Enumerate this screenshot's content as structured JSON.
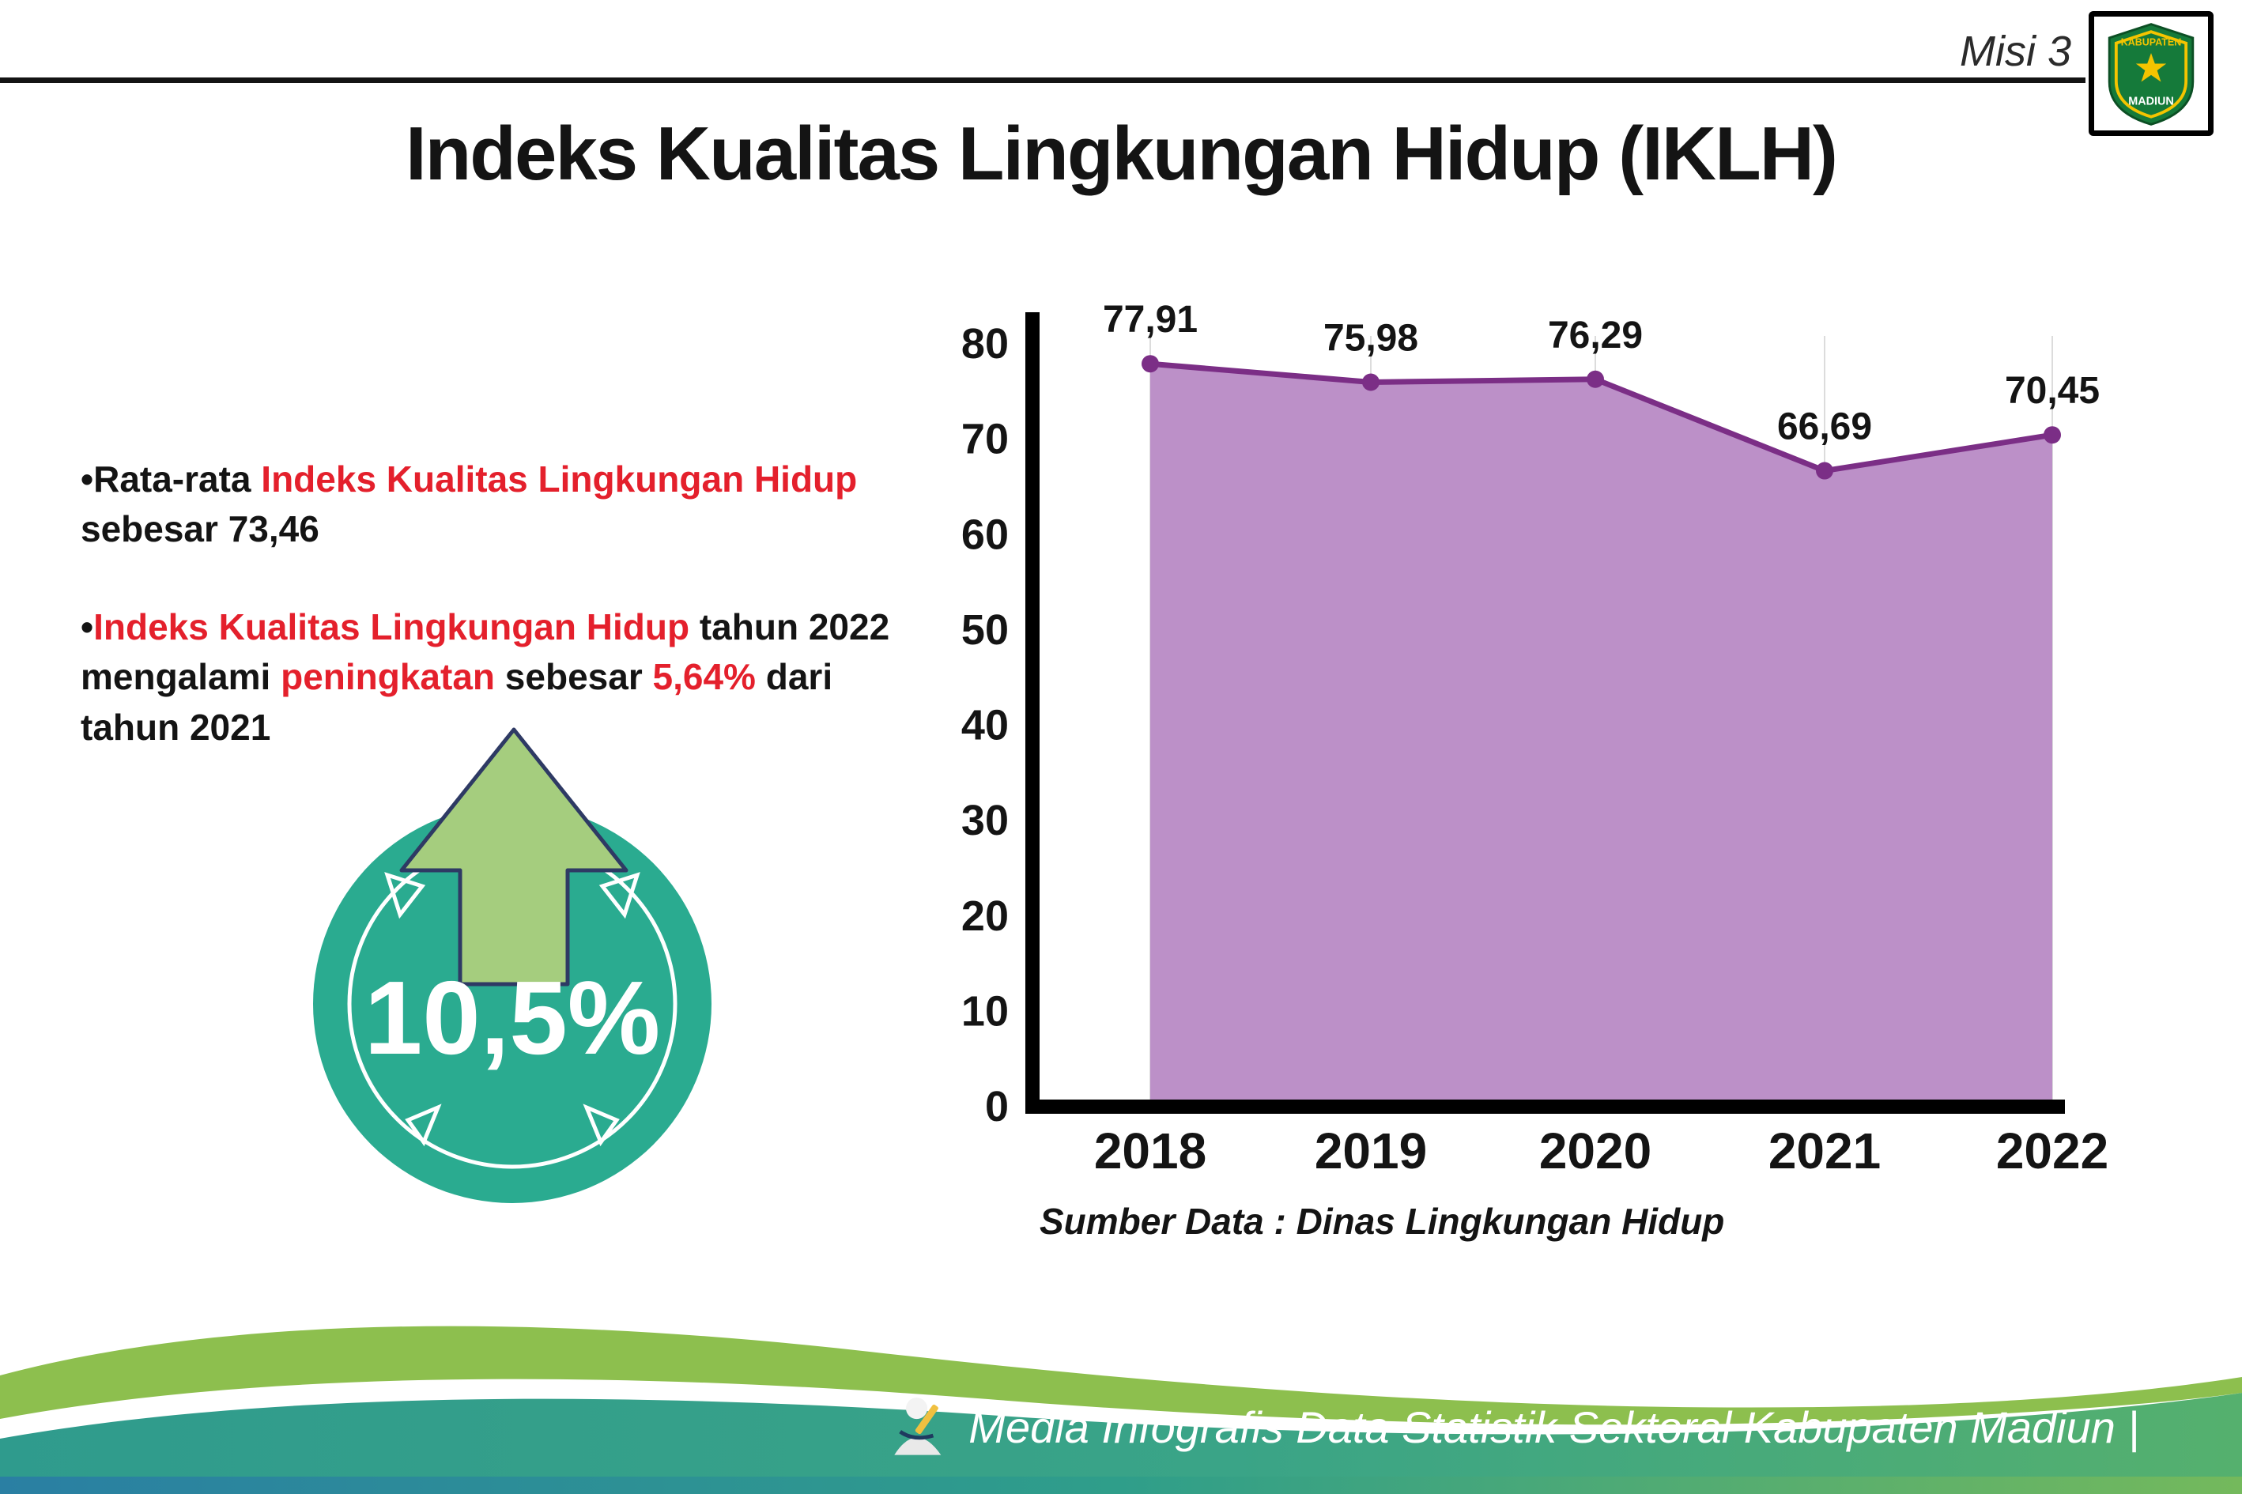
{
  "header": {
    "misi_label": "Misi 3",
    "title": "Indeks Kualitas Lingkungan Hidup (IKLH)",
    "logo": {
      "top_text": "KABUPATEN",
      "bottom_text": "MADIUN"
    }
  },
  "bullets": {
    "b1_seg1": "•Rata-rata ",
    "b1_seg2": "Indeks Kualitas Lingkungan Hidup",
    "b1_seg3": " sebesar 73,46",
    "b2_seg0": "•",
    "b2_seg1": "Indeks Kualitas Lingkungan Hidup",
    "b2_seg2": " tahun 2022 mengalami ",
    "b2_seg3": "peningkatan",
    "b2_seg4": " sebesar ",
    "b2_seg5": "5,64%",
    "b2_seg6": " dari tahun 2021"
  },
  "badge": {
    "value": "10,5%"
  },
  "chart_data": {
    "type": "area",
    "title": "",
    "xlabel": "",
    "ylabel": "",
    "categories": [
      "2018",
      "2019",
      "2020",
      "2021",
      "2022"
    ],
    "values": [
      77.91,
      75.98,
      76.29,
      66.69,
      70.45
    ],
    "value_labels": [
      "77,91",
      "75,98",
      "76,29",
      "66,69",
      "70,45"
    ],
    "ylim": [
      0,
      80
    ],
    "yticks": [
      0,
      10,
      20,
      30,
      40,
      50,
      60,
      70,
      80
    ],
    "grid": "vertical-light",
    "legend": "none",
    "fill_color": "#bc90c8",
    "line_color": "#7b2e86",
    "source": "Sumber Data : Dinas Lingkungan Hidup"
  },
  "footer": {
    "text": "Media Infografis Data Statistik Sektoral Kabupaten Madiun |"
  },
  "colors": {
    "accent_red": "#e4202c",
    "badge_teal": "#2aab90",
    "arrow_green": "#a5cd7e",
    "wave_green": "#8dbf4e",
    "wave_teal": "#35a18c"
  }
}
